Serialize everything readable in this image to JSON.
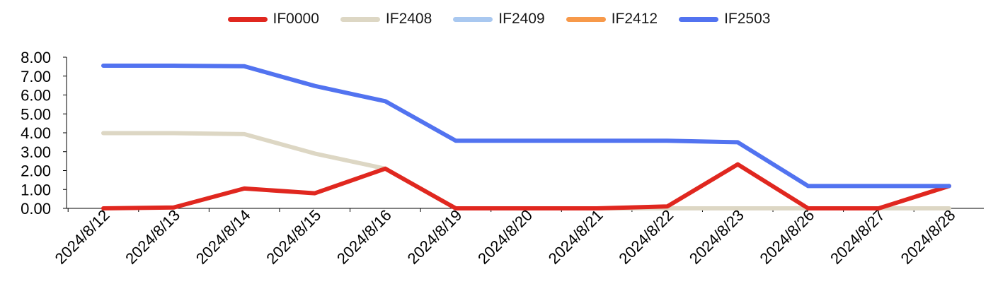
{
  "chart_data": {
    "type": "line",
    "categories": [
      "2024/8/12",
      "2024/8/13",
      "2024/8/14",
      "2024/8/15",
      "2024/8/16",
      "2024/8/19",
      "2024/8/20",
      "2024/8/21",
      "2024/8/22",
      "2024/8/23",
      "2024/8/26",
      "2024/8/27",
      "2024/8/28"
    ],
    "ylim": [
      0,
      8
    ],
    "yticks": [
      "0.00",
      "1.00",
      "2.00",
      "3.00",
      "4.00",
      "5.00",
      "6.00",
      "7.00",
      "8.00"
    ],
    "grid": false,
    "legend_placement": "top-center",
    "series": [
      {
        "name": "IF0000",
        "color": "#e0271f",
        "values": [
          0,
          0.05,
          1.05,
          0.8,
          2.1,
          0,
          0,
          0,
          0.1,
          2.33,
          0,
          0,
          1.18
        ]
      },
      {
        "name": "IF2408",
        "color": "#ddd7c4",
        "values": [
          3.98,
          3.98,
          3.93,
          2.9,
          2.1,
          0,
          0,
          0,
          0,
          0,
          0,
          0,
          0
        ]
      },
      {
        "name": "IF2409",
        "color": "#a9c8f0",
        "values": [
          null,
          null,
          null,
          null,
          null,
          null,
          null,
          null,
          null,
          null,
          null,
          null,
          null
        ]
      },
      {
        "name": "IF2412",
        "color": "#f7994a",
        "values": [
          null,
          null,
          null,
          null,
          null,
          null,
          null,
          null,
          null,
          null,
          null,
          null,
          null
        ]
      },
      {
        "name": "IF2503",
        "color": "#5273f0",
        "values": [
          7.55,
          7.55,
          7.52,
          6.48,
          5.67,
          3.58,
          3.58,
          3.58,
          3.58,
          3.5,
          1.18,
          1.18,
          1.18
        ]
      }
    ]
  }
}
